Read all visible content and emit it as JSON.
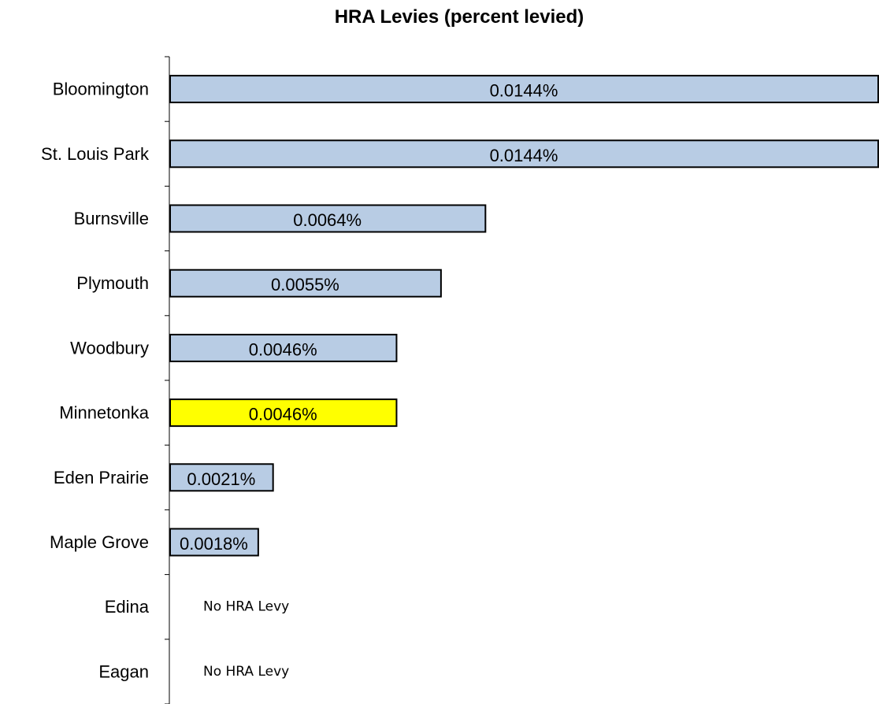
{
  "chart_data": {
    "type": "bar",
    "orientation": "horizontal",
    "title": "HRA Levies (percent levied)",
    "xlabel": "",
    "ylabel": "",
    "categories": [
      "Bloomington",
      "St. Louis Park",
      "Burnsville",
      "Plymouth",
      "Woodbury",
      "Minnetonka",
      "Eden Prairie",
      "Maple Grove",
      "Edina",
      "Eagan"
    ],
    "values": [
      0.0144,
      0.0144,
      0.0064,
      0.0055,
      0.0046,
      0.0046,
      0.0021,
      0.0018,
      null,
      null
    ],
    "data_labels": [
      "0.0144%",
      "0.0144%",
      "0.0064%",
      "0.0055%",
      "0.0046%",
      "0.0046%",
      "0.0021%",
      "0.0018%",
      "No HRA Levy",
      "No HRA Levy"
    ],
    "bar_colors": [
      "#b8cce4",
      "#b8cce4",
      "#b8cce4",
      "#b8cce4",
      "#b8cce4",
      "#ffff00",
      "#b8cce4",
      "#b8cce4",
      null,
      null
    ],
    "default_color": "#b8cce4",
    "highlight_color": "#ffff00",
    "xlim": [
      0,
      0.0144
    ],
    "grid": false,
    "legend": "none"
  }
}
